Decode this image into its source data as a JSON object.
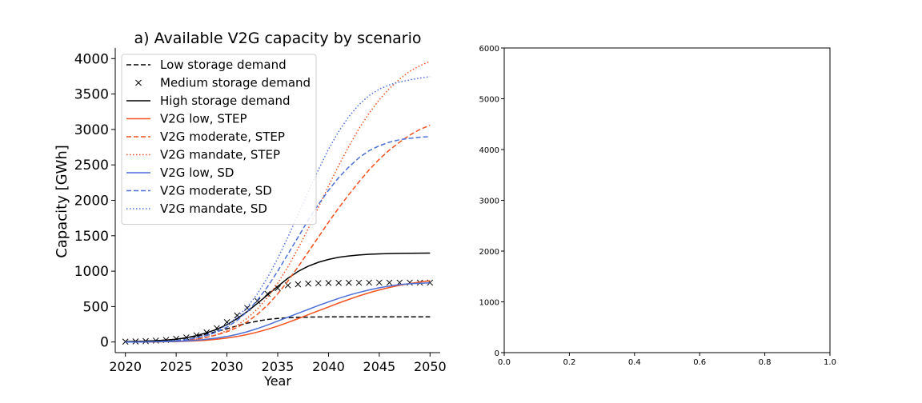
{
  "chart_data": [
    {
      "type": "line",
      "title": "a) Available V2G capacity by scenario",
      "xlabel": "Year",
      "ylabel": "Capacity [GWh]",
      "xlim": [
        2019,
        2051
      ],
      "ylim": [
        -150,
        4150
      ],
      "xticks": [
        2020,
        2025,
        2030,
        2035,
        2040,
        2045,
        2050
      ],
      "yticks": [
        0,
        500,
        1000,
        1500,
        2000,
        2500,
        3000,
        3500,
        4000
      ],
      "legend_position": "upper-left",
      "x": [
        2020,
        2021,
        2022,
        2023,
        2024,
        2025,
        2026,
        2027,
        2028,
        2029,
        2030,
        2031,
        2032,
        2033,
        2034,
        2035,
        2036,
        2037,
        2038,
        2039,
        2040,
        2041,
        2042,
        2043,
        2044,
        2045,
        2046,
        2047,
        2048,
        2049,
        2050
      ],
      "series": [
        {
          "name": "Low storage demand",
          "color": "#000000",
          "style": "dashed",
          "values": [
            5,
            8,
            12,
            18,
            27,
            40,
            58,
            82,
            112,
            148,
            188,
            228,
            265,
            295,
            318,
            333,
            342,
            348,
            351,
            353,
            354,
            355,
            355,
            355,
            355,
            355,
            355,
            355,
            355,
            355,
            355
          ]
        },
        {
          "name": "Medium storage demand",
          "color": "#000000",
          "style": "markers",
          "values": [
            5,
            8,
            12,
            20,
            30,
            45,
            65,
            95,
            135,
            195,
            280,
            375,
            480,
            580,
            680,
            760,
            800,
            815,
            825,
            830,
            833,
            835,
            836,
            837,
            838,
            838,
            838,
            838,
            838,
            838,
            838
          ]
        },
        {
          "name": "High storage demand",
          "color": "#000000",
          "style": "solid",
          "values": [
            5,
            8,
            12,
            18,
            26,
            40,
            60,
            90,
            130,
            180,
            245,
            330,
            430,
            545,
            665,
            785,
            900,
            995,
            1070,
            1125,
            1165,
            1195,
            1215,
            1228,
            1238,
            1244,
            1248,
            1251,
            1253,
            1254,
            1255
          ]
        },
        {
          "name": "V2G low, STEP",
          "color": "#f4511e",
          "style": "solid",
          "values": [
            0,
            0,
            1,
            2,
            4,
            6,
            10,
            16,
            25,
            38,
            55,
            78,
            105,
            140,
            180,
            225,
            275,
            330,
            385,
            440,
            495,
            550,
            600,
            650,
            695,
            735,
            770,
            800,
            825,
            845,
            865
          ]
        },
        {
          "name": "V2G moderate, STEP",
          "color": "#f4511e",
          "style": "dashed",
          "values": [
            0,
            0,
            2,
            4,
            8,
            14,
            24,
            40,
            65,
            100,
            145,
            205,
            285,
            390,
            520,
            680,
            860,
            1060,
            1270,
            1480,
            1690,
            1890,
            2080,
            2260,
            2430,
            2580,
            2710,
            2820,
            2920,
            3000,
            3060
          ]
        },
        {
          "name": "V2G mandate, STEP",
          "color": "#f4511e",
          "style": "dotted",
          "values": [
            0,
            0,
            2,
            4,
            8,
            14,
            24,
            40,
            65,
            105,
            160,
            235,
            335,
            465,
            630,
            830,
            1060,
            1320,
            1600,
            1900,
            2200,
            2490,
            2760,
            3010,
            3230,
            3420,
            3580,
            3710,
            3820,
            3900,
            3960
          ]
        },
        {
          "name": "V2G low, SD",
          "color": "#4a6fd8",
          "style": "solid",
          "values": [
            0,
            0,
            1,
            3,
            5,
            9,
            15,
            25,
            38,
            55,
            78,
            108,
            145,
            190,
            240,
            295,
            350,
            405,
            460,
            515,
            565,
            615,
            660,
            700,
            735,
            765,
            790,
            810,
            822,
            830,
            835
          ]
        },
        {
          "name": "V2G moderate, SD",
          "color": "#4a6fd8",
          "style": "dashed",
          "values": [
            0,
            0,
            2,
            5,
            10,
            18,
            32,
            55,
            90,
            140,
            210,
            305,
            430,
            590,
            780,
            1000,
            1240,
            1480,
            1720,
            1940,
            2140,
            2320,
            2470,
            2600,
            2700,
            2770,
            2820,
            2855,
            2875,
            2890,
            2900
          ]
        },
        {
          "name": "V2G mandate, SD",
          "color": "#4a6fd8",
          "style": "dotted",
          "values": [
            0,
            0,
            2,
            5,
            10,
            20,
            36,
            62,
            102,
            160,
            240,
            350,
            495,
            680,
            910,
            1180,
            1480,
            1800,
            2120,
            2430,
            2720,
            2970,
            3180,
            3350,
            3480,
            3570,
            3630,
            3670,
            3700,
            3725,
            3745
          ]
        }
      ]
    },
    {
      "type": "line",
      "title": "",
      "xlabel": "",
      "ylabel": "",
      "xlim": [
        0.0,
        1.0
      ],
      "ylim": [
        0,
        6000
      ],
      "xticks": [
        "0.0",
        "0.2",
        "0.4",
        "0.6",
        "0.8",
        "1.0"
      ],
      "yticks": [
        "0",
        "1000",
        "2000",
        "3000",
        "4000",
        "5000",
        "6000"
      ],
      "series": []
    }
  ]
}
